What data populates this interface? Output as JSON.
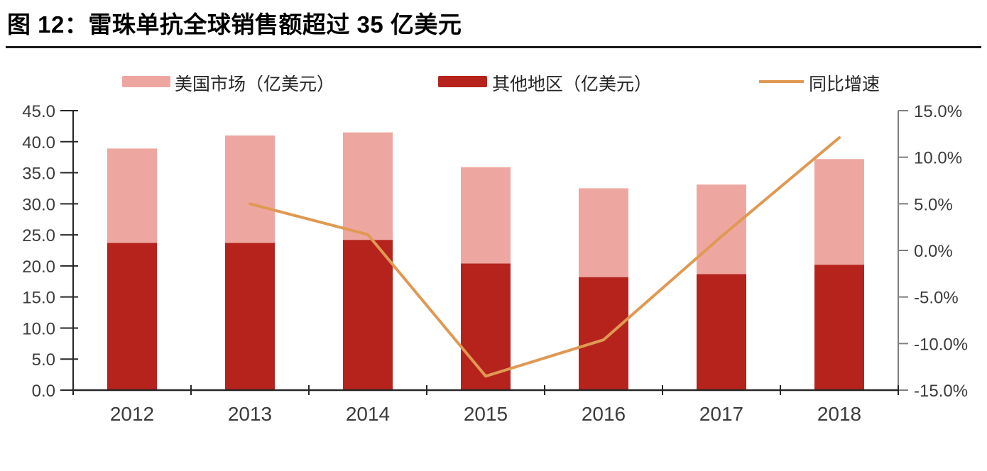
{
  "figure": {
    "title": "图 12：雷珠单抗全球销售额超过 35 亿美元"
  },
  "chart_data": {
    "type": "bar",
    "subtype": "stacked-bars-with-line-overlay",
    "categories": [
      "2012",
      "2013",
      "2014",
      "2015",
      "2016",
      "2017",
      "2018"
    ],
    "series": [
      {
        "name": "美国市场（亿美元）",
        "role": "bar-stack-top",
        "color": "#EEA7A0",
        "axis": "left",
        "values": [
          15.2,
          17.3,
          17.3,
          15.5,
          14.3,
          14.4,
          17.0
        ]
      },
      {
        "name": "其他地区（亿美元）",
        "role": "bar-stack-bottom",
        "color": "#B5231C",
        "axis": "left",
        "values": [
          23.7,
          23.7,
          24.2,
          20.4,
          18.2,
          18.7,
          20.2
        ]
      },
      {
        "name": "同比增速",
        "role": "line",
        "color": "#DF9953",
        "axis": "right",
        "values": [
          null,
          5.0,
          1.7,
          -13.5,
          -9.6,
          1.5,
          12.1
        ]
      }
    ],
    "stacked_totals": [
      38.9,
      41.0,
      41.5,
      35.9,
      32.5,
      33.1,
      37.2
    ],
    "left_axis": {
      "min": 0,
      "max": 45,
      "step": 5,
      "tick_labels": [
        "0.0",
        "5.0",
        "10.0",
        "15.0",
        "20.0",
        "25.0",
        "30.0",
        "35.0",
        "40.0",
        "45.0"
      ]
    },
    "right_axis": {
      "min": -15,
      "max": 15,
      "step": 5,
      "tick_labels": [
        "-15.0%",
        "-10.0%",
        "-5.0%",
        "0.0%",
        "5.0%",
        "10.0%",
        "15.0%"
      ]
    },
    "legend_position": "top",
    "grid": false
  }
}
